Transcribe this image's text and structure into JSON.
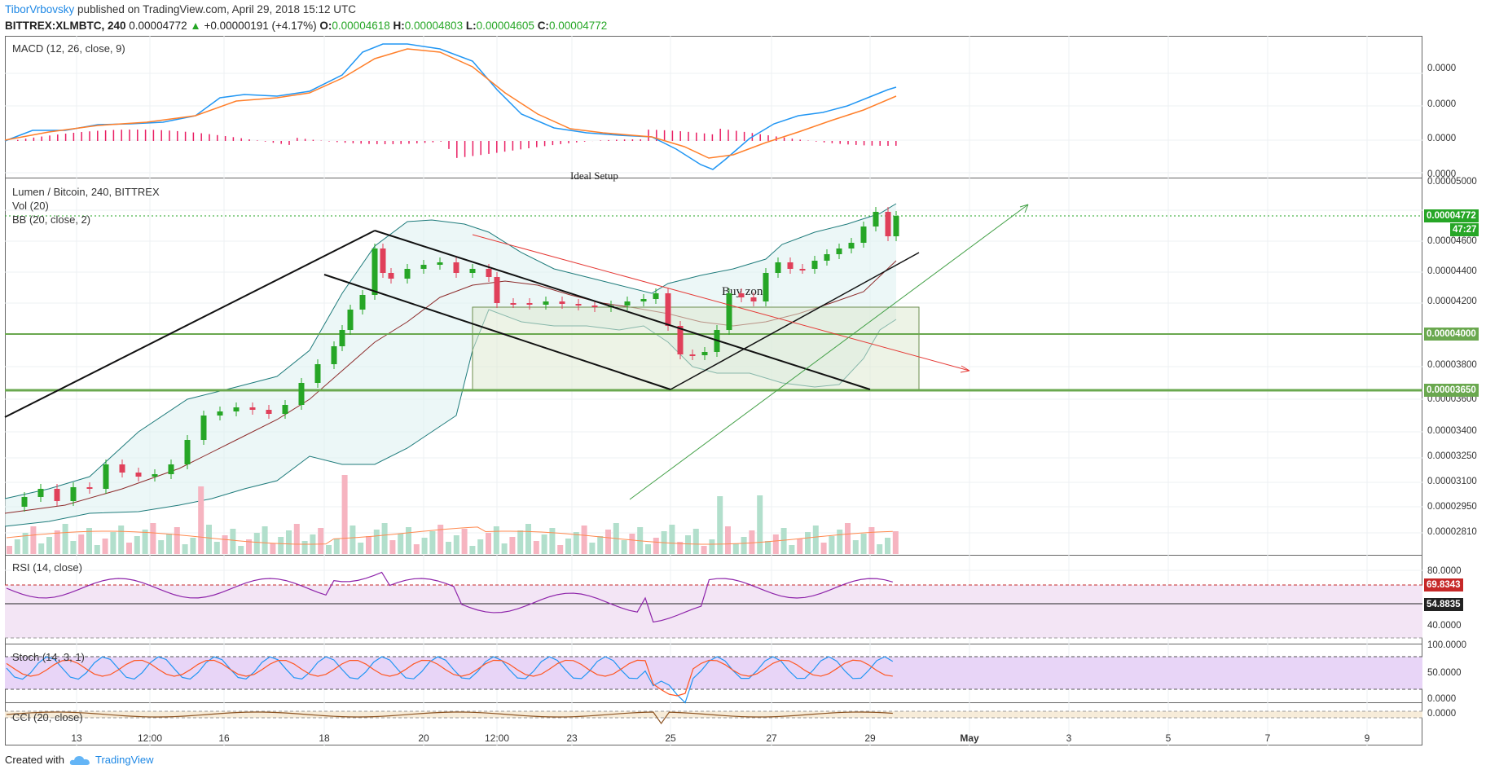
{
  "header": {
    "author": "TiborVrbovsky",
    "published": "published on TradingView.com, April 29, 2018 15:12 UTC",
    "symbol": "BITTREX:XLMBTC, 240",
    "last": "0.00004772",
    "change": "+0.00000191 (+4.17%)",
    "o_label": "O:",
    "o_value": "0.00004618",
    "h_label": "H:",
    "h_value": "0.00004803",
    "l_label": "L:",
    "l_value": "0.00004605",
    "c_label": "C:",
    "c_value": "0.00004772"
  },
  "macd": {
    "legend": "MACD (12, 26, close, 9)",
    "ticks": [
      "0.0000",
      "0.0000",
      "0.0000",
      "0.0000"
    ],
    "note": "Ideal Setup"
  },
  "main": {
    "legend_title": "Lumen / Bitcoin, 240, BITTREX",
    "legend_vol": "Vol (20)",
    "legend_bb": "BB (20, close, 2)",
    "ticks": [
      "0.00005000",
      "0.00004600",
      "0.00004400",
      "0.00004200",
      "0.00003800",
      "0.00003600",
      "0.00003400",
      "0.00003250",
      "0.00003100",
      "0.00002950",
      "0.00002810"
    ],
    "price_tag": "0.00004772",
    "countdown_tag": "47:27",
    "level_tag_1": "0.00004000",
    "level_tag_2": "0.00003650",
    "zone_label": "Buy zone"
  },
  "rsi": {
    "legend": "RSI (14, close)",
    "ticks": [
      "80.0000",
      "40.0000"
    ],
    "tag_1": "69.8343",
    "tag_2": "54.8835"
  },
  "stoch": {
    "legend": "Stoch (14, 3, 1)",
    "ticks": [
      "100.0000",
      "50.0000",
      "0.0000"
    ]
  },
  "cci": {
    "legend": "CCI (20, close)",
    "ticks": [
      "0.0000"
    ]
  },
  "dates": [
    "13",
    "12:00",
    "16",
    "18",
    "20",
    "12:00",
    "23",
    "25",
    "27",
    "29",
    "May",
    "3",
    "5",
    "7",
    "9"
  ],
  "footer": {
    "created": "Created with",
    "brand": "TradingView"
  },
  "colors": {
    "up": "#26a626",
    "down": "#e0405a",
    "green_level": "#6aa84f",
    "macd_line": "#2196f3",
    "signal_line": "#ff7f2a",
    "rsi_line": "#8e24aa",
    "rsi_fill": "#f3e5f5",
    "stoch_fill": "#e8d5f7",
    "bb_fill": "#e0f2f1"
  }
}
